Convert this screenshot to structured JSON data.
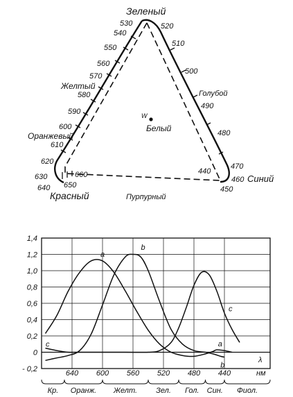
{
  "triangle": {
    "vertex_labels": {
      "green": "Зеленый",
      "blue": "Синий",
      "red": "Красный"
    },
    "side_labels": {
      "yellow": "Желтый",
      "orange": "Оранжевый",
      "cyan": "Голубой",
      "purple": "Пурпурный"
    },
    "white_point": {
      "symbol": "W",
      "label": "Белый"
    },
    "wavelengths": {
      "w530": "530",
      "w520": "520",
      "w540": "540",
      "w510": "510",
      "w550": "550",
      "w500": "500",
      "w560": "560",
      "w570": "570",
      "w490": "490",
      "w580": "580",
      "w590": "590",
      "w480": "480",
      "w600": "600",
      "w610": "610",
      "w620": "620",
      "w470": "470",
      "w440": "440",
      "w460": "460",
      "w450": "450",
      "w660": "660",
      "w630": "630",
      "w650": "650",
      "w640": "640"
    }
  },
  "chart_data": {
    "type": "line",
    "y_ticks": [
      "1,4",
      "1,2",
      "1,0",
      "0,8",
      "0,6",
      "0,4",
      "0,2",
      "0",
      "- 0,2"
    ],
    "x_ticks": [
      "640",
      "600",
      "560",
      "520",
      "480",
      "440"
    ],
    "x_unit": "нм",
    "lambda_symbol": "λ",
    "x_range_nm": [
      680,
      380
    ],
    "y_range": [
      -0.2,
      1.4
    ],
    "bands": [
      "Кр.",
      "Оранж.",
      "Желт.",
      "Зел.",
      "Гол.",
      "Син.",
      "Фиол."
    ],
    "band_bounds_nm": [
      680,
      650,
      600,
      540,
      500,
      465,
      440,
      380
    ],
    "series": [
      {
        "name": "a",
        "x": [
          675,
          660,
          645,
          630,
          615,
          600,
          585,
          570,
          555,
          540,
          525,
          510,
          495,
          480,
          465,
          455,
          450,
          440,
          430
        ],
        "y": [
          0.23,
          0.45,
          0.75,
          0.98,
          1.12,
          1.12,
          0.98,
          0.75,
          0.5,
          0.27,
          0.1,
          0.0,
          -0.04,
          -0.05,
          -0.02,
          0.01,
          0.03,
          0.02,
          0.0
        ]
      },
      {
        "name": "b",
        "x": [
          675,
          660,
          645,
          630,
          615,
          600,
          585,
          570,
          560,
          550,
          540,
          525,
          510,
          495,
          480,
          465,
          455,
          445,
          440
        ],
        "y": [
          -0.1,
          -0.07,
          -0.04,
          0.02,
          0.22,
          0.58,
          0.95,
          1.17,
          1.2,
          1.17,
          1.0,
          0.62,
          0.28,
          0.1,
          0.02,
          0.0,
          -0.02,
          -0.05,
          -0.06
        ]
      },
      {
        "name": "c",
        "x": [
          675,
          660,
          645,
          630,
          600,
          570,
          540,
          525,
          510,
          500,
          490,
          480,
          470,
          460,
          450,
          440,
          430,
          420
        ],
        "y": [
          0.05,
          0.02,
          0.0,
          0.0,
          0.0,
          0.0,
          0.0,
          0.02,
          0.12,
          0.3,
          0.55,
          0.82,
          0.98,
          0.95,
          0.75,
          0.48,
          0.28,
          0.12
        ]
      }
    ]
  }
}
